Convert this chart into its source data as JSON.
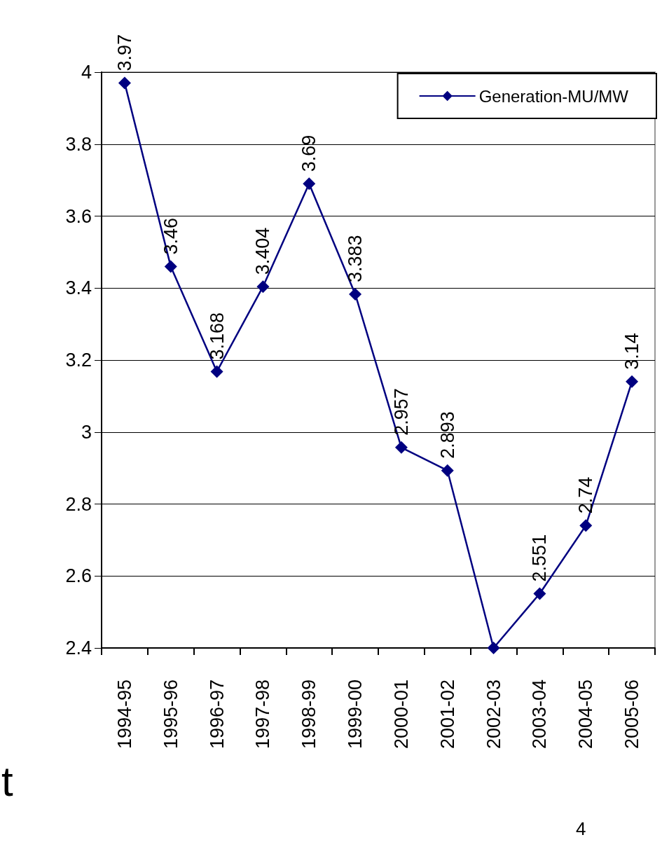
{
  "chart_data": {
    "type": "line",
    "categories": [
      "1994-95",
      "1995-96",
      "1996-97",
      "1997-98",
      "1998-99",
      "1999-00",
      "2000-01",
      "2001-02",
      "2002-03",
      "2003-04",
      "2004-05",
      "2005-06"
    ],
    "series": [
      {
        "name": "Generation-MU/MW",
        "color": "#000080",
        "values": [
          3.97,
          3.46,
          3.168,
          3.404,
          3.69,
          3.383,
          2.957,
          2.893,
          2.4,
          2.551,
          2.74,
          3.14
        ],
        "value_labels": [
          "3.97",
          "3.46",
          "3.168",
          "3.404",
          "3.69",
          "3.383",
          "2.957",
          "2.893",
          null,
          "2.551",
          "2.74",
          "3.14"
        ]
      }
    ],
    "ylim": [
      2.4,
      4
    ],
    "yticks": [
      2.4,
      2.6,
      2.8,
      3,
      3.2,
      3.4,
      3.6,
      3.8,
      4
    ],
    "grid": "y",
    "legend": "top right",
    "marker": "diamond",
    "line_style": "solid",
    "annotations": [
      "t",
      "4"
    ]
  }
}
